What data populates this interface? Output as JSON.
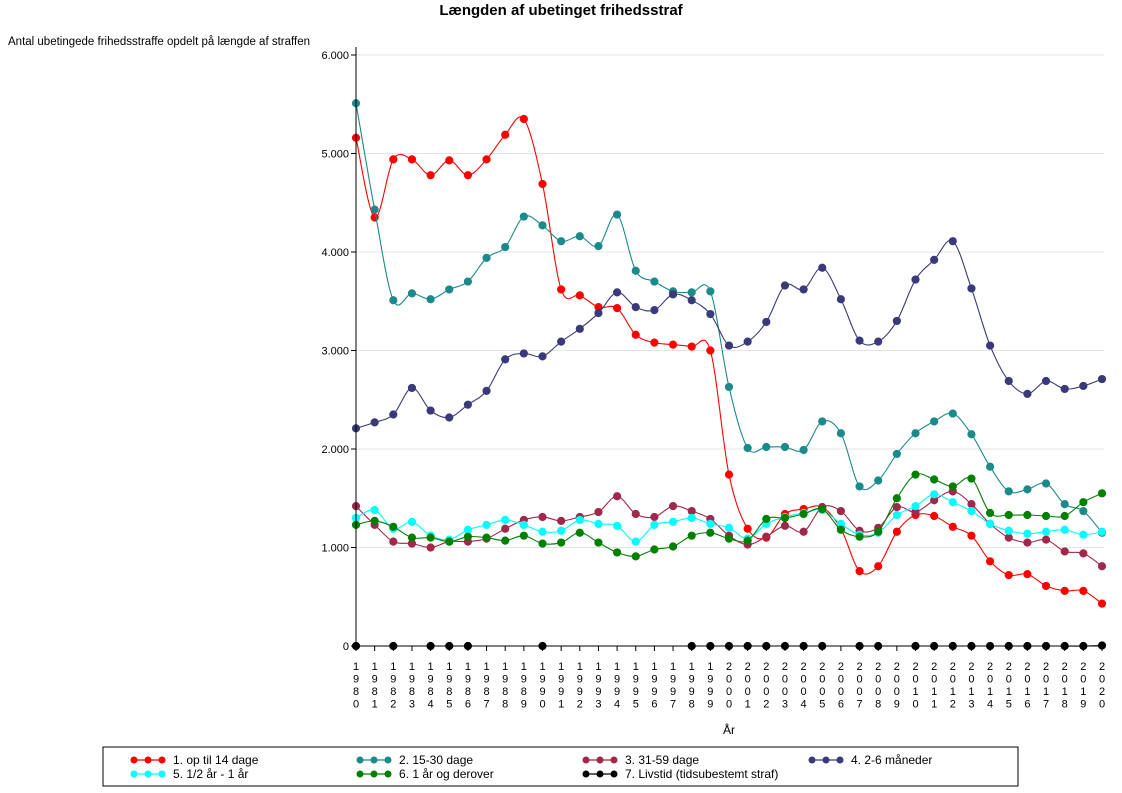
{
  "chart_data": {
    "type": "line",
    "title": "Længden af ubetinget frihedsstraf",
    "ylabel": "Antal ubetingede frihedsstraffe opdelt på længde af straffen",
    "xlabel": "År",
    "ylim": [
      0,
      6000
    ],
    "yticks": [
      0,
      1000,
      2000,
      3000,
      4000,
      5000,
      6000
    ],
    "ytick_labels": [
      "0",
      "1.000",
      "2.000",
      "3.000",
      "4.000",
      "5.000",
      "6.000"
    ],
    "x": [
      1980,
      1981,
      1982,
      1983,
      1984,
      1985,
      1986,
      1987,
      1988,
      1989,
      1990,
      1991,
      1992,
      1993,
      1994,
      1995,
      1996,
      1997,
      1998,
      1999,
      2000,
      2001,
      2002,
      2003,
      2004,
      2005,
      2006,
      2007,
      2008,
      2009,
      2010,
      2011,
      2012,
      2013,
      2014,
      2015,
      2016,
      2017,
      2018,
      2019,
      2020
    ],
    "legend_position": "bottom",
    "series": [
      {
        "name": "1. op til 14 dage",
        "color": "#ff0000",
        "values": [
          5160,
          4350,
          4940,
          4940,
          4780,
          4930,
          4780,
          4940,
          5190,
          5350,
          4690,
          3620,
          3560,
          3440,
          3430,
          3160,
          3080,
          3060,
          3040,
          3000,
          1740,
          1190,
          1100,
          1340,
          1390,
          1410,
          1190,
          760,
          810,
          1160,
          1330,
          1320,
          1210,
          1120,
          860,
          720,
          730,
          610,
          560,
          560,
          430
        ]
      },
      {
        "name": "2. 15-30 dage",
        "color": "#1b8a8a",
        "values": [
          5510,
          4430,
          3510,
          3580,
          3520,
          3620,
          3700,
          3940,
          4050,
          4360,
          4270,
          4110,
          4160,
          4060,
          4380,
          3810,
          3700,
          3600,
          3590,
          3600,
          2630,
          2010,
          2020,
          2020,
          1990,
          2280,
          2160,
          1620,
          1680,
          1950,
          2160,
          2280,
          2360,
          2150,
          1820,
          1570,
          1590,
          1650,
          1440,
          1370,
          1150
        ]
      },
      {
        "name": "3. 31-59 dage",
        "color": "#a0284a",
        "values": [
          1420,
          1230,
          1060,
          1040,
          1000,
          1060,
          1060,
          1090,
          1190,
          1280,
          1310,
          1270,
          1310,
          1360,
          1520,
          1340,
          1310,
          1420,
          1370,
          1290,
          1120,
          1030,
          1110,
          1220,
          1160,
          1410,
          1370,
          1170,
          1200,
          1410,
          1360,
          1480,
          1570,
          1440,
          1240,
          1100,
          1050,
          1080,
          960,
          940,
          810
        ]
      },
      {
        "name": "4. 2-6 måneder",
        "color": "#3a3a7a",
        "values": [
          2210,
          2270,
          2350,
          2620,
          2390,
          2320,
          2450,
          2590,
          2910,
          2970,
          2940,
          3090,
          3220,
          3380,
          3590,
          3440,
          3410,
          3570,
          3510,
          3370,
          3050,
          3090,
          3290,
          3660,
          3620,
          3840,
          3520,
          3100,
          3090,
          3300,
          3720,
          3920,
          4110,
          3630,
          3050,
          2690,
          2560,
          2690,
          2610,
          2640,
          2710
        ]
      },
      {
        "name": "5. 1/2 år - 1 år",
        "color": "#00ffff",
        "values": [
          1300,
          1380,
          1190,
          1260,
          1120,
          1080,
          1180,
          1230,
          1280,
          1230,
          1160,
          1170,
          1280,
          1240,
          1220,
          1060,
          1230,
          1260,
          1300,
          1240,
          1200,
          1090,
          1240,
          1310,
          1350,
          1380,
          1240,
          1130,
          1150,
          1330,
          1420,
          1540,
          1460,
          1370,
          1240,
          1170,
          1140,
          1160,
          1180,
          1130,
          1160
        ]
      },
      {
        "name": "6. 1 år og derover",
        "color": "#008000",
        "values": [
          1230,
          1270,
          1210,
          1100,
          1100,
          1060,
          1110,
          1100,
          1070,
          1120,
          1040,
          1050,
          1150,
          1050,
          950,
          910,
          980,
          1010,
          1120,
          1150,
          1090,
          1070,
          1290,
          1300,
          1340,
          1390,
          1180,
          1110,
          1160,
          1500,
          1740,
          1690,
          1620,
          1700,
          1350,
          1330,
          1330,
          1320,
          1320,
          1460,
          1550
        ]
      },
      {
        "name": "7. Livstid (tidsubestemt straf)",
        "color": "#000000",
        "values": [
          0,
          0,
          0,
          0,
          0,
          0,
          0,
          0,
          0,
          0,
          0,
          0,
          0,
          0,
          0,
          0,
          0,
          0,
          0,
          0,
          0,
          0,
          0,
          0,
          0,
          0,
          0,
          0,
          0,
          0,
          0,
          0,
          0,
          0,
          0,
          0,
          0,
          0,
          0,
          0,
          5
        ]
      }
    ],
    "markers": [
      [
        0,
        1,
        2,
        3,
        4,
        5,
        6,
        7,
        8,
        9,
        10,
        11,
        12,
        13,
        14,
        15,
        16,
        17,
        18,
        19,
        20,
        21,
        22,
        23,
        24,
        25,
        26,
        27,
        28,
        29,
        30,
        31,
        32,
        33,
        34,
        35,
        36,
        37,
        38,
        39,
        40
      ],
      [
        0,
        1,
        2,
        3,
        4,
        5,
        6,
        7,
        8,
        9,
        10,
        11,
        12,
        13,
        14,
        15,
        16,
        17,
        18,
        19,
        20,
        21,
        22,
        23,
        24,
        25,
        26,
        27,
        28,
        29,
        30,
        31,
        32,
        33,
        34,
        35,
        36,
        37,
        38,
        39,
        40
      ],
      [
        0,
        1,
        2,
        3,
        4,
        5,
        6,
        7,
        8,
        9,
        10,
        11,
        12,
        13,
        14,
        15,
        16,
        17,
        18,
        19,
        20,
        21,
        22,
        23,
        24,
        25,
        26,
        27,
        28,
        29,
        30,
        31,
        32,
        33,
        34,
        35,
        36,
        37,
        38,
        39,
        40
      ],
      [
        0,
        1,
        2,
        3,
        4,
        5,
        6,
        7,
        8,
        9,
        10,
        11,
        12,
        13,
        14,
        15,
        16,
        17,
        18,
        19,
        20,
        21,
        22,
        23,
        24,
        25,
        26,
        27,
        28,
        29,
        30,
        31,
        32,
        33,
        34,
        35,
        36,
        37,
        38,
        39,
        40
      ],
      [
        0,
        1,
        2,
        3,
        4,
        5,
        6,
        7,
        8,
        9,
        10,
        11,
        12,
        13,
        14,
        15,
        16,
        17,
        18,
        19,
        20,
        21,
        22,
        23,
        24,
        25,
        26,
        27,
        28,
        29,
        30,
        31,
        32,
        33,
        34,
        35,
        36,
        37,
        38,
        39,
        40
      ],
      [
        0,
        1,
        2,
        3,
        4,
        5,
        6,
        7,
        8,
        9,
        10,
        11,
        12,
        13,
        14,
        15,
        16,
        17,
        18,
        19,
        20,
        21,
        22,
        23,
        24,
        25,
        26,
        27,
        28,
        29,
        30,
        31,
        32,
        33,
        34,
        35,
        36,
        37,
        38,
        39,
        40
      ],
      [
        0,
        2,
        4,
        5,
        6,
        10,
        18,
        19,
        20,
        21,
        22,
        23,
        24,
        25,
        27,
        28,
        30,
        31,
        32,
        33,
        34,
        35,
        36,
        37,
        38,
        39,
        40
      ]
    ]
  }
}
